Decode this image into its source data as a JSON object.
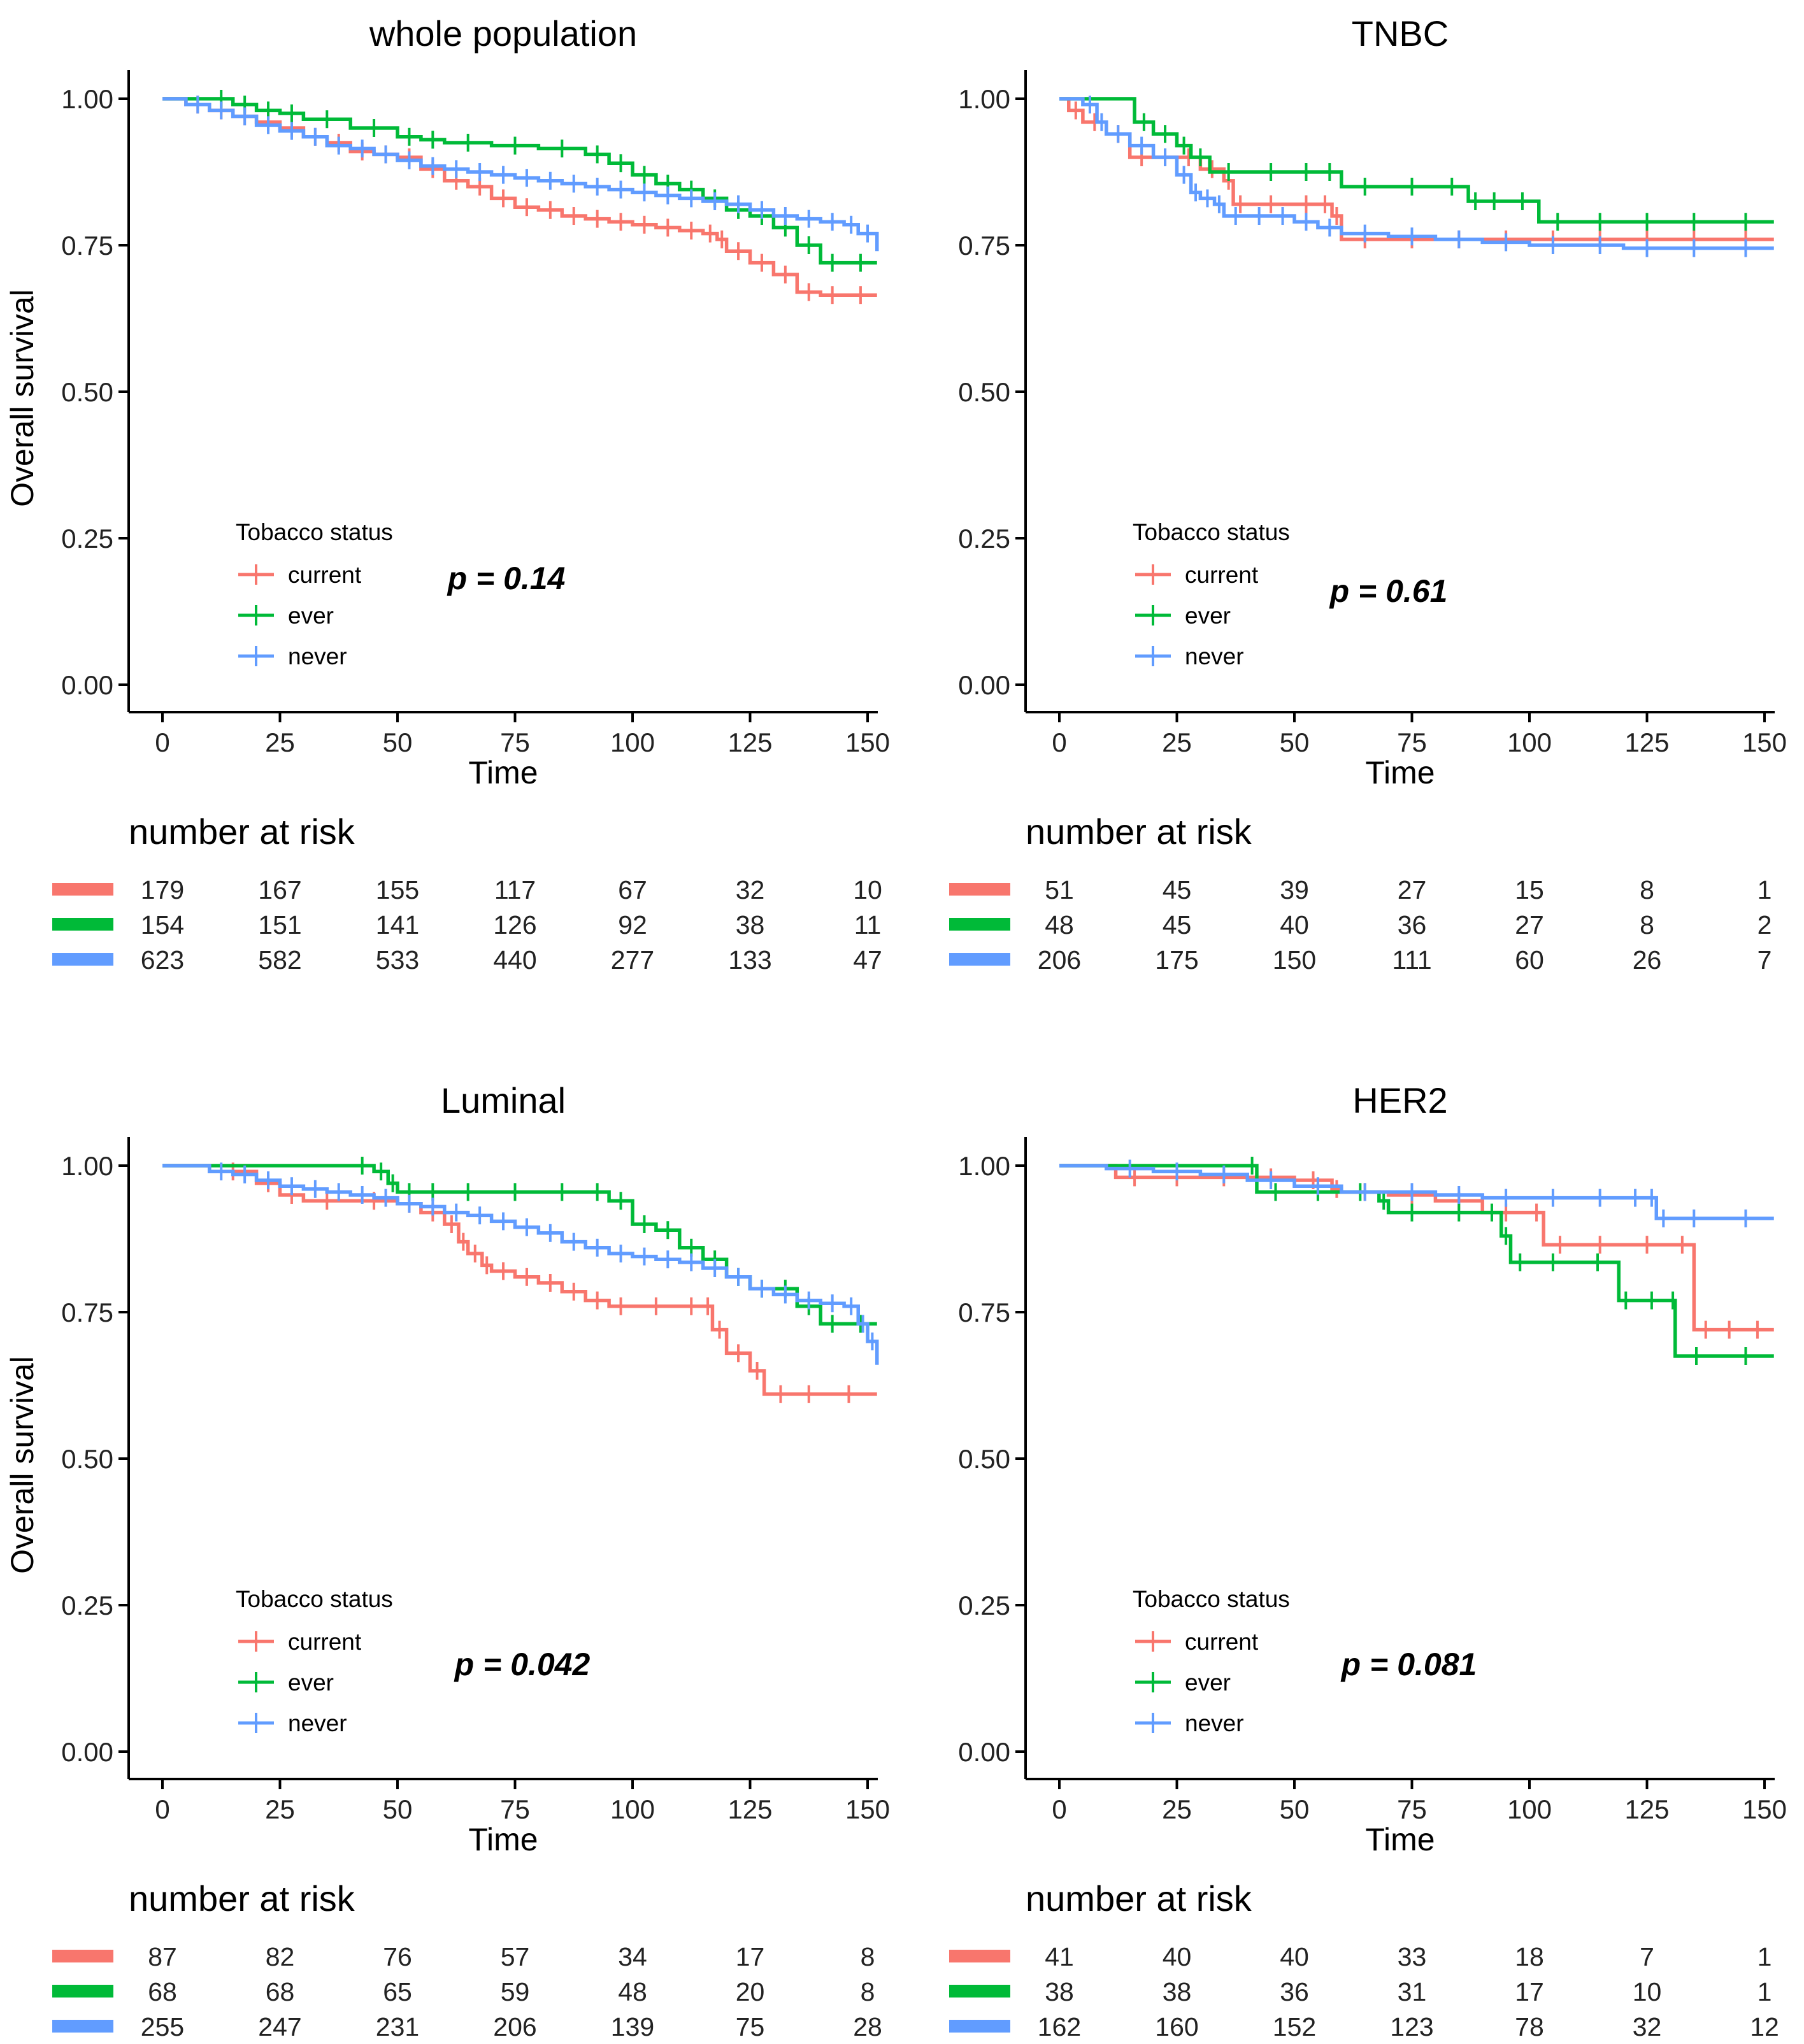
{
  "colors": {
    "current": "#F8766D",
    "ever": "#00BA38",
    "never": "#619CFF"
  },
  "axis": {
    "ylabel": "Overall survival",
    "xlabel": "Time",
    "yticks": [
      "1.00",
      "0.75",
      "0.50",
      "0.25",
      "0.00"
    ],
    "xticks": [
      "0",
      "25",
      "50",
      "75",
      "100",
      "125",
      "150"
    ]
  },
  "legend_title": "Tobacco status",
  "risk_title": "number at risk",
  "chart_data": [
    {
      "type": "line",
      "title": "whole population",
      "p_value": "p = 0.14",
      "xlim": [
        0,
        152
      ],
      "ylim": [
        0,
        1
      ],
      "series": [
        {
          "name": "current",
          "x": [
            0,
            5,
            10,
            15,
            20,
            25,
            30,
            35,
            40,
            45,
            50,
            55,
            60,
            65,
            70,
            75,
            80,
            85,
            90,
            95,
            100,
            105,
            110,
            115,
            118,
            120,
            125,
            130,
            135,
            140,
            145,
            152
          ],
          "y": [
            1,
            0.99,
            0.98,
            0.97,
            0.96,
            0.95,
            0.935,
            0.925,
            0.91,
            0.905,
            0.9,
            0.88,
            0.86,
            0.85,
            0.83,
            0.815,
            0.81,
            0.8,
            0.795,
            0.79,
            0.785,
            0.78,
            0.775,
            0.77,
            0.76,
            0.74,
            0.72,
            0.7,
            0.67,
            0.665,
            0.665,
            0.665
          ]
        },
        {
          "name": "ever",
          "x": [
            0,
            10,
            15,
            20,
            25,
            30,
            40,
            50,
            55,
            60,
            70,
            80,
            90,
            95,
            100,
            105,
            110,
            115,
            120,
            125,
            130,
            135,
            140,
            145,
            152
          ],
          "y": [
            1,
            1,
            0.99,
            0.98,
            0.975,
            0.965,
            0.95,
            0.935,
            0.93,
            0.925,
            0.92,
            0.915,
            0.905,
            0.89,
            0.87,
            0.855,
            0.845,
            0.83,
            0.81,
            0.8,
            0.78,
            0.75,
            0.72,
            0.72,
            0.72
          ]
        },
        {
          "name": "never",
          "x": [
            0,
            5,
            10,
            15,
            20,
            25,
            30,
            35,
            40,
            45,
            50,
            55,
            60,
            65,
            70,
            75,
            80,
            85,
            90,
            95,
            100,
            105,
            110,
            115,
            120,
            125,
            130,
            135,
            140,
            145,
            148,
            152
          ],
          "y": [
            1,
            0.99,
            0.98,
            0.97,
            0.955,
            0.945,
            0.935,
            0.92,
            0.915,
            0.905,
            0.895,
            0.885,
            0.88,
            0.875,
            0.87,
            0.865,
            0.86,
            0.855,
            0.85,
            0.845,
            0.84,
            0.835,
            0.83,
            0.825,
            0.82,
            0.81,
            0.8,
            0.795,
            0.79,
            0.785,
            0.77,
            0.74
          ]
        }
      ],
      "risk_table": {
        "times": [
          0,
          25,
          50,
          75,
          100,
          125,
          150
        ],
        "current": [
          179,
          167,
          155,
          117,
          67,
          32,
          10
        ],
        "ever": [
          154,
          151,
          141,
          126,
          92,
          38,
          11
        ],
        "never": [
          623,
          582,
          533,
          440,
          277,
          133,
          47
        ]
      }
    },
    {
      "type": "line",
      "title": "TNBC",
      "p_value": "p = 0.61",
      "xlim": [
        0,
        152
      ],
      "ylim": [
        0,
        1
      ],
      "series": [
        {
          "name": "current",
          "x": [
            0,
            2,
            5,
            10,
            15,
            20,
            25,
            30,
            35,
            37,
            40,
            50,
            55,
            58,
            60,
            70,
            80,
            90,
            100,
            110,
            120,
            130,
            140,
            152
          ],
          "y": [
            1,
            0.98,
            0.96,
            0.94,
            0.9,
            0.9,
            0.9,
            0.88,
            0.86,
            0.82,
            0.82,
            0.82,
            0.82,
            0.8,
            0.76,
            0.76,
            0.76,
            0.76,
            0.76,
            0.76,
            0.76,
            0.76,
            0.76,
            0.76
          ]
        },
        {
          "name": "ever",
          "x": [
            0,
            16,
            20,
            25,
            28,
            32,
            40,
            50,
            55,
            60,
            70,
            80,
            87,
            90,
            95,
            102,
            110,
            120,
            130,
            140,
            152
          ],
          "y": [
            1,
            0.96,
            0.94,
            0.92,
            0.9,
            0.875,
            0.875,
            0.875,
            0.875,
            0.85,
            0.85,
            0.85,
            0.825,
            0.825,
            0.825,
            0.79,
            0.79,
            0.79,
            0.79,
            0.79,
            0.79
          ]
        },
        {
          "name": "never",
          "x": [
            0,
            5,
            8,
            10,
            15,
            20,
            25,
            28,
            30,
            33,
            35,
            40,
            45,
            50,
            55,
            60,
            70,
            80,
            90,
            100,
            110,
            120,
            130,
            140,
            152
          ],
          "y": [
            1,
            0.99,
            0.96,
            0.94,
            0.92,
            0.9,
            0.87,
            0.84,
            0.83,
            0.82,
            0.8,
            0.8,
            0.8,
            0.79,
            0.78,
            0.77,
            0.765,
            0.76,
            0.755,
            0.75,
            0.75,
            0.745,
            0.745,
            0.745,
            0.745
          ]
        }
      ],
      "risk_table": {
        "times": [
          0,
          25,
          50,
          75,
          100,
          125,
          150
        ],
        "current": [
          51,
          45,
          39,
          27,
          15,
          8,
          1
        ],
        "ever": [
          48,
          45,
          40,
          36,
          27,
          8,
          2
        ],
        "never": [
          206,
          175,
          150,
          111,
          60,
          26,
          7
        ]
      }
    },
    {
      "type": "line",
      "title": "Luminal",
      "p_value": "p = 0.042",
      "xlim": [
        0,
        152
      ],
      "ylim": [
        0,
        1
      ],
      "series": [
        {
          "name": "current",
          "x": [
            0,
            10,
            20,
            25,
            30,
            40,
            50,
            55,
            60,
            63,
            65,
            68,
            70,
            75,
            80,
            85,
            90,
            95,
            100,
            110,
            115,
            117,
            120,
            125,
            128,
            135,
            140,
            152
          ],
          "y": [
            1,
            0.99,
            0.97,
            0.95,
            0.94,
            0.94,
            0.935,
            0.92,
            0.9,
            0.87,
            0.85,
            0.83,
            0.82,
            0.81,
            0.8,
            0.785,
            0.77,
            0.76,
            0.76,
            0.76,
            0.76,
            0.72,
            0.68,
            0.65,
            0.61,
            0.61,
            0.61,
            0.61
          ]
        },
        {
          "name": "ever",
          "x": [
            0,
            40,
            45,
            48,
            50,
            55,
            60,
            70,
            80,
            90,
            95,
            100,
            105,
            110,
            115,
            120,
            125,
            130,
            135,
            140,
            145,
            152
          ],
          "y": [
            1,
            1,
            0.99,
            0.97,
            0.955,
            0.955,
            0.955,
            0.955,
            0.955,
            0.955,
            0.94,
            0.9,
            0.89,
            0.86,
            0.84,
            0.81,
            0.79,
            0.79,
            0.76,
            0.73,
            0.73,
            0.73
          ]
        },
        {
          "name": "never",
          "x": [
            0,
            10,
            15,
            20,
            25,
            30,
            35,
            40,
            45,
            50,
            55,
            60,
            65,
            70,
            75,
            80,
            85,
            90,
            95,
            100,
            105,
            110,
            115,
            120,
            125,
            130,
            135,
            140,
            145,
            148,
            150,
            152
          ],
          "y": [
            1,
            0.99,
            0.985,
            0.975,
            0.965,
            0.96,
            0.955,
            0.95,
            0.945,
            0.935,
            0.93,
            0.92,
            0.915,
            0.905,
            0.895,
            0.885,
            0.87,
            0.86,
            0.85,
            0.845,
            0.84,
            0.835,
            0.825,
            0.81,
            0.79,
            0.78,
            0.77,
            0.765,
            0.76,
            0.73,
            0.7,
            0.66
          ]
        }
      ],
      "risk_table": {
        "times": [
          0,
          25,
          50,
          75,
          100,
          125,
          150
        ],
        "current": [
          87,
          82,
          76,
          57,
          34,
          17,
          8
        ],
        "ever": [
          68,
          68,
          65,
          59,
          48,
          20,
          8
        ],
        "never": [
          255,
          247,
          231,
          206,
          139,
          75,
          28
        ]
      }
    },
    {
      "type": "line",
      "title": "HER2",
      "p_value": "p = 0.081",
      "xlim": [
        0,
        152
      ],
      "ylim": [
        0,
        1
      ],
      "series": [
        {
          "name": "current",
          "x": [
            0,
            12,
            20,
            30,
            40,
            50,
            58,
            60,
            70,
            80,
            90,
            100,
            103,
            110,
            120,
            130,
            135,
            140,
            145,
            152
          ],
          "y": [
            1,
            0.98,
            0.98,
            0.98,
            0.98,
            0.975,
            0.96,
            0.955,
            0.95,
            0.94,
            0.92,
            0.92,
            0.865,
            0.865,
            0.865,
            0.865,
            0.72,
            0.72,
            0.72,
            0.72
          ]
        },
        {
          "name": "ever",
          "x": [
            0,
            40,
            42,
            50,
            60,
            68,
            70,
            80,
            90,
            94,
            96,
            100,
            110,
            119,
            122,
            130,
            131,
            140,
            152
          ],
          "y": [
            1,
            1,
            0.955,
            0.955,
            0.955,
            0.94,
            0.92,
            0.92,
            0.92,
            0.88,
            0.835,
            0.835,
            0.835,
            0.77,
            0.77,
            0.77,
            0.675,
            0.675,
            0.675
          ]
        },
        {
          "name": "never",
          "x": [
            0,
            10,
            20,
            30,
            40,
            50,
            60,
            70,
            80,
            90,
            100,
            110,
            120,
            125,
            127,
            130,
            140,
            152
          ],
          "y": [
            1,
            0.995,
            0.99,
            0.985,
            0.975,
            0.965,
            0.955,
            0.955,
            0.95,
            0.945,
            0.945,
            0.945,
            0.945,
            0.945,
            0.91,
            0.91,
            0.91,
            0.91
          ]
        }
      ],
      "risk_table": {
        "times": [
          0,
          25,
          50,
          75,
          100,
          125,
          150
        ],
        "current": [
          41,
          40,
          40,
          33,
          18,
          7,
          1
        ],
        "ever": [
          38,
          38,
          36,
          31,
          17,
          10,
          1
        ],
        "never": [
          162,
          160,
          152,
          123,
          78,
          32,
          12
        ]
      }
    }
  ]
}
